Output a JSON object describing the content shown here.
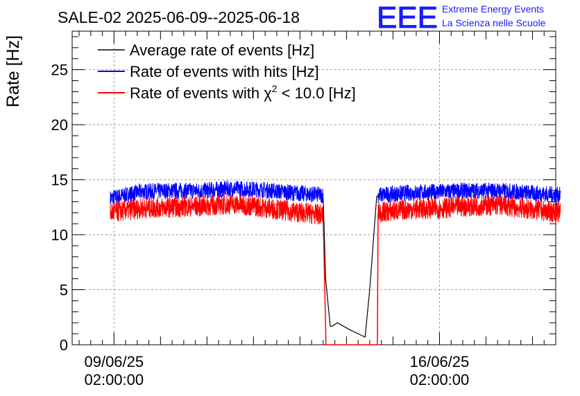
{
  "chart_data": {
    "type": "line",
    "title": "SALE-02 2025-06-09--2025-06-18",
    "ylabel": "Rate [Hz]",
    "xlabel": "",
    "x_range_days": [
      -0.9,
      9.5
    ],
    "ylim": [
      0,
      28.5
    ],
    "grid": true,
    "legend_position": "top-left",
    "y_ticks": [
      0,
      5,
      10,
      15,
      20,
      25
    ],
    "x_tick_labels": [
      {
        "day": 0,
        "line1": "09/06/25",
        "line2": "02:00:00"
      },
      {
        "day": 7,
        "line1": "16/06/25",
        "line2": "02:00:00"
      }
    ],
    "series": [
      {
        "name": "Average rate of events [Hz]",
        "color": "#000000",
        "x": [
          -0.08,
          4.5,
          4.55,
          4.65,
          4.7,
          4.8,
          5.1,
          5.4,
          5.5,
          5.65,
          5.7,
          9.6
        ],
        "y": [
          13.3,
          13.3,
          6.0,
          1.7,
          1.7,
          2.0,
          1.3,
          0.7,
          5.0,
          13.5,
          13.5,
          13.3
        ]
      },
      {
        "name": "Rate of events with hits [Hz]",
        "color": "#0000ff",
        "segments": [
          {
            "x_start": -0.08,
            "x_end": 4.5,
            "base": [
              13.3,
              13.9,
              14.0,
              14.0,
              14.2,
              14.1,
              13.8,
              13.6
            ],
            "noise": 1.5
          },
          {
            "x_start": 5.68,
            "x_end": 9.6,
            "base": [
              13.6,
              13.8,
              13.9,
              14.0,
              14.0,
              13.8,
              13.6
            ],
            "noise": 1.5
          }
        ]
      },
      {
        "name": "Rate of events with χ² < 10.0 [Hz]",
        "color": "#ff0000",
        "segments": [
          {
            "x_start": -0.08,
            "x_end": 4.5,
            "base": [
              12.0,
              12.4,
              12.5,
              12.6,
              12.8,
              12.5,
              12.1,
              11.8
            ],
            "noise": 1.9
          },
          {
            "x_start": 5.68,
            "x_end": 9.6,
            "base": [
              12.0,
              12.3,
              12.4,
              12.6,
              12.7,
              12.3,
              12.0
            ],
            "noise": 1.9
          }
        ],
        "zero_x": [
          4.5,
          5.68
        ]
      }
    ]
  },
  "legend": [
    {
      "label": "Average rate of events [Hz]",
      "color": "#000000"
    },
    {
      "label": "Rate of events with hits [Hz]",
      "color": "#0000ff"
    },
    {
      "label_prefix": "Rate of events with ",
      "label_chi": "χ",
      "label_sup": "2",
      "label_suffix": " < 10.0 [Hz]",
      "color": "#ff0000"
    }
  ],
  "logo": {
    "mark": "EEE",
    "line1": "Extreme Energy Events",
    "line2": "La Scienza nelle Scuole",
    "color": "#1a1aff"
  }
}
